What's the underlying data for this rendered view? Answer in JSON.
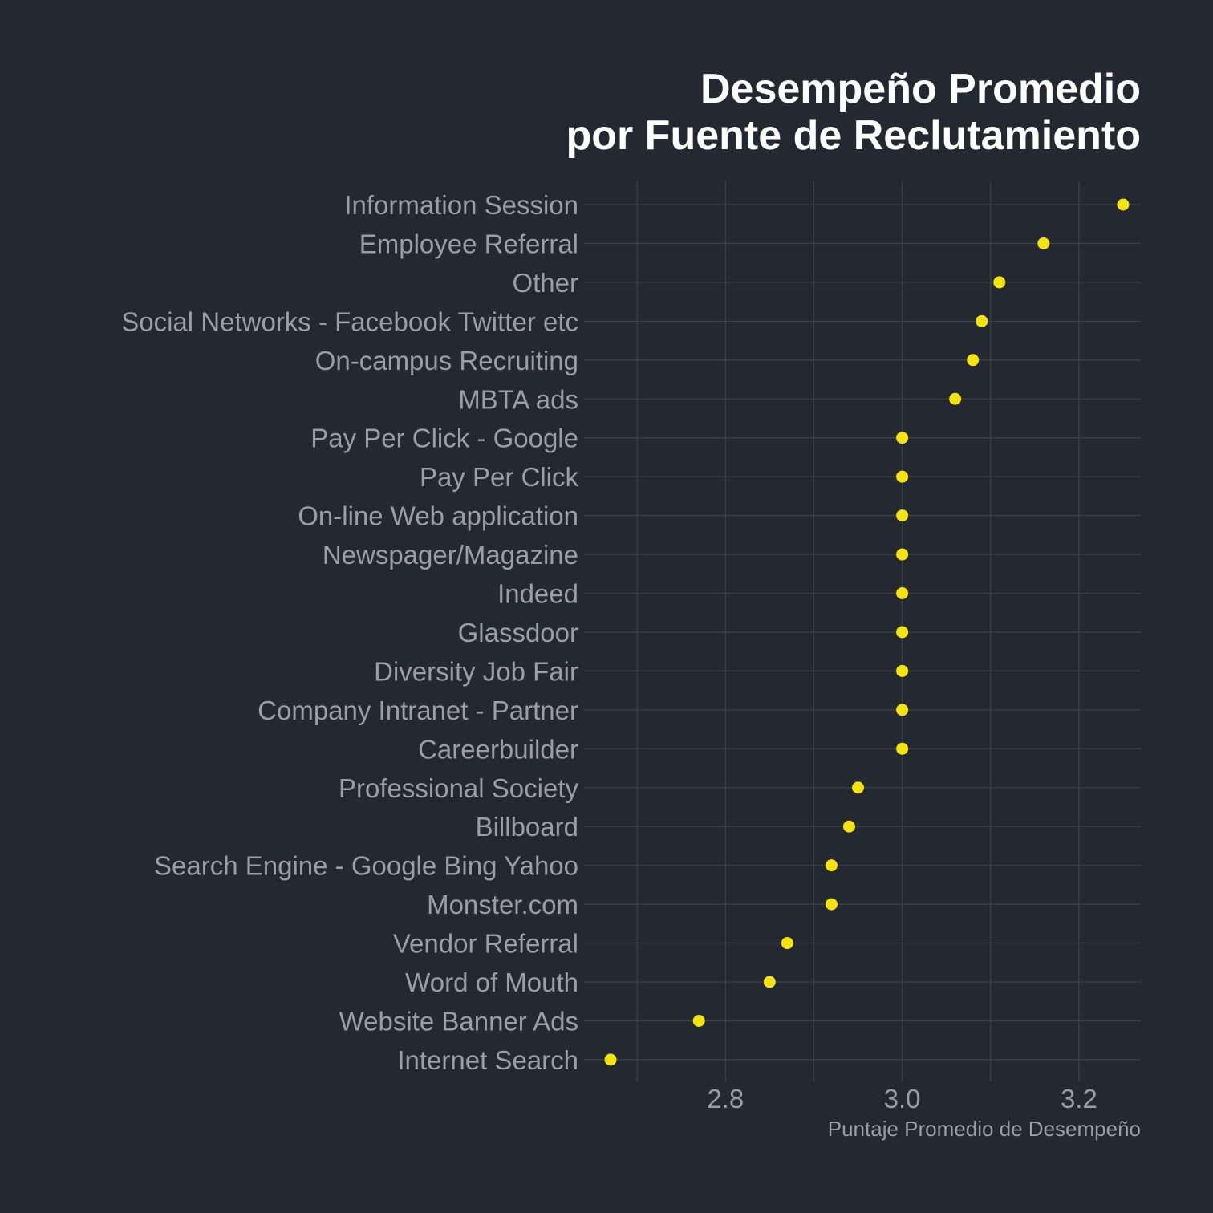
{
  "colors": {
    "background": "#242831",
    "point": "#f5e30f",
    "grid": "#3c4049",
    "label": "#9b9ea4",
    "title": "#ffffff"
  },
  "chart_data": {
    "type": "scatter",
    "title_lines": [
      "Desempeño Promedio",
      "por Fuente de Reclutamiento"
    ],
    "xlabel": "Puntaje Promedio de Desempeño",
    "ylabel": "",
    "xlim": [
      2.64,
      3.27
    ],
    "x_ticks": [
      2.8,
      3.0,
      3.2
    ],
    "x_tick_labels": [
      "2.8",
      "3.0",
      "3.2"
    ],
    "grid": true,
    "categories": [
      "Information Session",
      "Employee Referral",
      "Other",
      "Social Networks - Facebook Twitter etc",
      "On-campus Recruiting",
      "MBTA ads",
      "Pay Per Click - Google",
      "Pay Per Click",
      "On-line Web application",
      "Newspager/Magazine",
      "Indeed",
      "Glassdoor",
      "Diversity Job Fair",
      "Company Intranet - Partner",
      "Careerbuilder",
      "Professional Society",
      "Billboard",
      "Search Engine - Google Bing Yahoo",
      "Monster.com",
      "Vendor Referral",
      "Word of Mouth",
      "Website Banner Ads",
      "Internet Search"
    ],
    "values": [
      3.25,
      3.16,
      3.11,
      3.09,
      3.08,
      3.06,
      3.0,
      3.0,
      3.0,
      3.0,
      3.0,
      3.0,
      3.0,
      3.0,
      3.0,
      2.95,
      2.94,
      2.92,
      2.92,
      2.87,
      2.85,
      2.77,
      2.67
    ]
  }
}
